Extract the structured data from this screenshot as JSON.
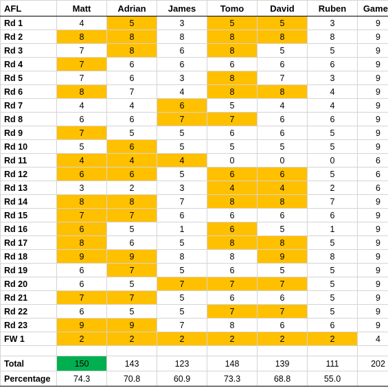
{
  "header": {
    "label": "AFL",
    "players": [
      "Matt",
      "Adrian",
      "James",
      "Tomo",
      "David",
      "Ruben"
    ],
    "games": "Games"
  },
  "rounds": [
    {
      "label": "Rd 1",
      "scores": [
        4,
        5,
        3,
        5,
        5,
        3
      ],
      "highlight": [
        false,
        true,
        false,
        true,
        true,
        false
      ],
      "games": 9
    },
    {
      "label": "Rd 2",
      "scores": [
        8,
        8,
        8,
        8,
        8,
        8
      ],
      "highlight": [
        true,
        true,
        false,
        true,
        true,
        false
      ],
      "games": 9
    },
    {
      "label": "Rd 3",
      "scores": [
        7,
        8,
        6,
        8,
        5,
        5
      ],
      "highlight": [
        false,
        true,
        false,
        true,
        false,
        false
      ],
      "games": 9
    },
    {
      "label": "Rd 4",
      "scores": [
        7,
        6,
        6,
        6,
        6,
        6
      ],
      "highlight": [
        true,
        false,
        false,
        false,
        false,
        false
      ],
      "games": 9
    },
    {
      "label": "Rd 5",
      "scores": [
        7,
        6,
        3,
        8,
        7,
        3
      ],
      "highlight": [
        false,
        false,
        false,
        true,
        false,
        false
      ],
      "games": 9
    },
    {
      "label": "Rd 6",
      "scores": [
        8,
        7,
        4,
        8,
        8,
        4
      ],
      "highlight": [
        true,
        false,
        false,
        true,
        true,
        false
      ],
      "games": 9
    },
    {
      "label": "Rd 7",
      "scores": [
        4,
        4,
        6,
        5,
        4,
        4
      ],
      "highlight": [
        false,
        false,
        true,
        false,
        false,
        false
      ],
      "games": 9
    },
    {
      "label": "Rd 8",
      "scores": [
        6,
        6,
        7,
        7,
        6,
        6
      ],
      "highlight": [
        false,
        false,
        true,
        true,
        false,
        false
      ],
      "games": 9
    },
    {
      "label": "Rd 9",
      "scores": [
        7,
        5,
        5,
        6,
        6,
        5
      ],
      "highlight": [
        true,
        false,
        false,
        false,
        false,
        false
      ],
      "games": 9
    },
    {
      "label": "Rd 10",
      "scores": [
        5,
        6,
        5,
        5,
        5,
        5
      ],
      "highlight": [
        false,
        true,
        false,
        false,
        false,
        false
      ],
      "games": 9
    },
    {
      "label": "Rd 11",
      "scores": [
        4,
        4,
        4,
        0,
        0,
        0
      ],
      "highlight": [
        true,
        true,
        true,
        false,
        false,
        false
      ],
      "games": 6
    },
    {
      "label": "Rd 12",
      "scores": [
        6,
        6,
        5,
        6,
        6,
        5
      ],
      "highlight": [
        true,
        true,
        false,
        true,
        true,
        false
      ],
      "games": 6
    },
    {
      "label": "Rd 13",
      "scores": [
        3,
        2,
        3,
        4,
        4,
        2
      ],
      "highlight": [
        false,
        false,
        false,
        true,
        true,
        false
      ],
      "games": 6
    },
    {
      "label": "Rd 14",
      "scores": [
        8,
        8,
        7,
        8,
        8,
        7
      ],
      "highlight": [
        true,
        true,
        false,
        true,
        true,
        false
      ],
      "games": 9
    },
    {
      "label": "Rd 15",
      "scores": [
        7,
        7,
        6,
        6,
        6,
        6
      ],
      "highlight": [
        true,
        true,
        false,
        false,
        false,
        false
      ],
      "games": 9
    },
    {
      "label": "Rd 16",
      "scores": [
        6,
        5,
        1,
        6,
        5,
        1
      ],
      "highlight": [
        true,
        false,
        false,
        true,
        false,
        false
      ],
      "games": 9
    },
    {
      "label": "Rd 17",
      "scores": [
        8,
        6,
        5,
        8,
        8,
        5
      ],
      "highlight": [
        true,
        false,
        false,
        true,
        true,
        false
      ],
      "games": 9
    },
    {
      "label": "Rd 18",
      "scores": [
        9,
        9,
        8,
        8,
        9,
        8
      ],
      "highlight": [
        true,
        true,
        false,
        false,
        true,
        false
      ],
      "games": 9
    },
    {
      "label": "Rd 19",
      "scores": [
        6,
        7,
        5,
        6,
        5,
        5
      ],
      "highlight": [
        false,
        true,
        false,
        false,
        false,
        false
      ],
      "games": 9
    },
    {
      "label": "Rd 20",
      "scores": [
        6,
        5,
        7,
        7,
        7,
        5
      ],
      "highlight": [
        false,
        false,
        true,
        true,
        true,
        false
      ],
      "games": 9
    },
    {
      "label": "Rd 21",
      "scores": [
        7,
        7,
        5,
        6,
        6,
        5
      ],
      "highlight": [
        true,
        true,
        false,
        false,
        false,
        false
      ],
      "games": 9
    },
    {
      "label": "Rd 22",
      "scores": [
        6,
        5,
        5,
        7,
        7,
        5
      ],
      "highlight": [
        false,
        false,
        false,
        true,
        true,
        false
      ],
      "games": 9
    },
    {
      "label": "Rd 23",
      "scores": [
        9,
        9,
        7,
        8,
        6,
        6
      ],
      "highlight": [
        true,
        true,
        false,
        false,
        false,
        false
      ],
      "games": 9
    },
    {
      "label": "FW 1",
      "scores": [
        2,
        2,
        2,
        2,
        2,
        2
      ],
      "highlight": [
        true,
        true,
        true,
        true,
        true,
        true
      ],
      "games": 4
    }
  ],
  "totals": {
    "label": "Total",
    "values": [
      150,
      143,
      123,
      148,
      139,
      111
    ],
    "winner_index": 0,
    "games": 202
  },
  "percentage": {
    "label": "Percentage",
    "values": [
      "74.3",
      "70.8",
      "60.9",
      "73.3",
      "68.8",
      "55.0"
    ]
  },
  "colors": {
    "highlight": "#ffc000",
    "winner": "#00b050",
    "gridline": "#d4d4d4"
  }
}
